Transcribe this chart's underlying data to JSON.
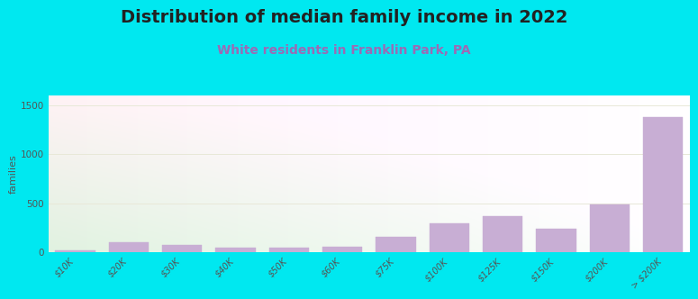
{
  "title": "Distribution of median family income in 2022",
  "subtitle": "White residents in Franklin Park, PA",
  "categories": [
    "$10K",
    "$20K",
    "$30K",
    "$40K",
    "$50K",
    "$60K",
    "$75K",
    "$100K",
    "$125K",
    "$150K",
    "$200K",
    "> $200K"
  ],
  "values": [
    15,
    100,
    70,
    45,
    45,
    50,
    160,
    290,
    370,
    240,
    490,
    1380
  ],
  "bar_color": "#c8aed4",
  "bar_edge_color": "#c8aed4",
  "background_color": "#00e8f0",
  "plot_bg_color_topleft": "#eaf5e0",
  "plot_bg_color_topright": "#ffffff",
  "plot_bg_color_bottomleft": "#d8f0d0",
  "plot_bg_color_bottomright": "#f8f8f8",
  "title_color": "#222222",
  "subtitle_color": "#9b6bb5",
  "ylabel": "families",
  "ylim": [
    0,
    1600
  ],
  "yticks": [
    0,
    500,
    1000,
    1500
  ],
  "grid_color": "#e8e8d8",
  "title_fontsize": 14,
  "subtitle_fontsize": 10,
  "ylabel_fontsize": 8,
  "tick_fontsize": 7
}
